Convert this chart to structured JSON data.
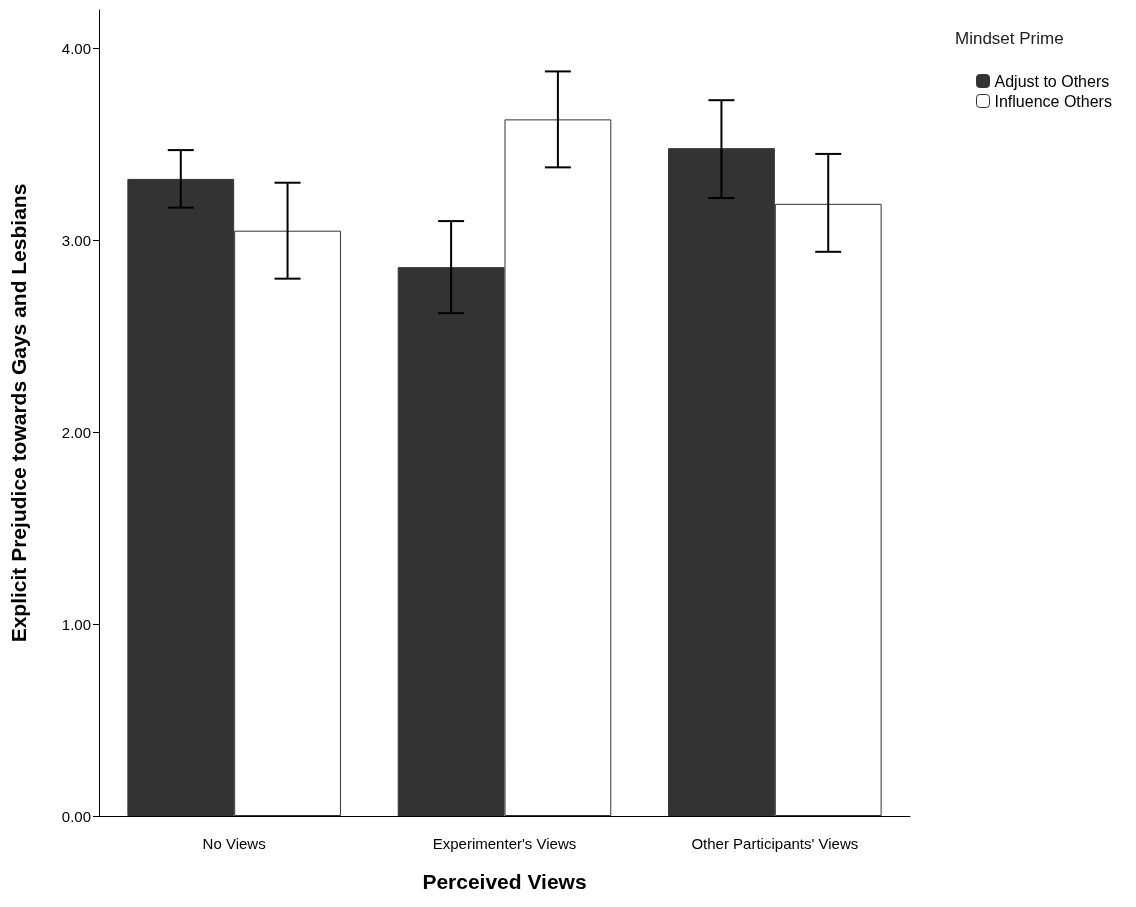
{
  "chart_data": {
    "type": "bar",
    "xlabel": "Perceived Views",
    "ylabel": "Explicit Prejudice towards Gays and Lesbians",
    "legend_title": "Mindset Prime",
    "legend": "top right",
    "categories": [
      "No Views",
      "Experimenter's Views",
      "Other Participants' Views"
    ],
    "series": [
      {
        "name": "Adjust to Others",
        "color": "#333333",
        "values": [
          3.32,
          2.86,
          3.48
        ],
        "errors": [
          [
            3.17,
            3.47
          ],
          [
            2.62,
            3.1
          ],
          [
            3.22,
            3.73
          ]
        ]
      },
      {
        "name": "Influence Others",
        "color": "#ffffff",
        "values": [
          3.05,
          3.63,
          3.19
        ],
        "errors": [
          [
            2.8,
            3.3
          ],
          [
            3.38,
            3.88
          ],
          [
            2.94,
            3.45
          ]
        ]
      }
    ],
    "ylim": [
      0,
      4.2
    ],
    "yticks": [
      {
        "value": 0,
        "label": "0.00"
      },
      {
        "value": 1,
        "label": "1.00"
      },
      {
        "value": 2,
        "label": "2.00"
      },
      {
        "value": 3,
        "label": "3.00"
      },
      {
        "value": 4,
        "label": "4.00"
      }
    ],
    "grid": false
  }
}
